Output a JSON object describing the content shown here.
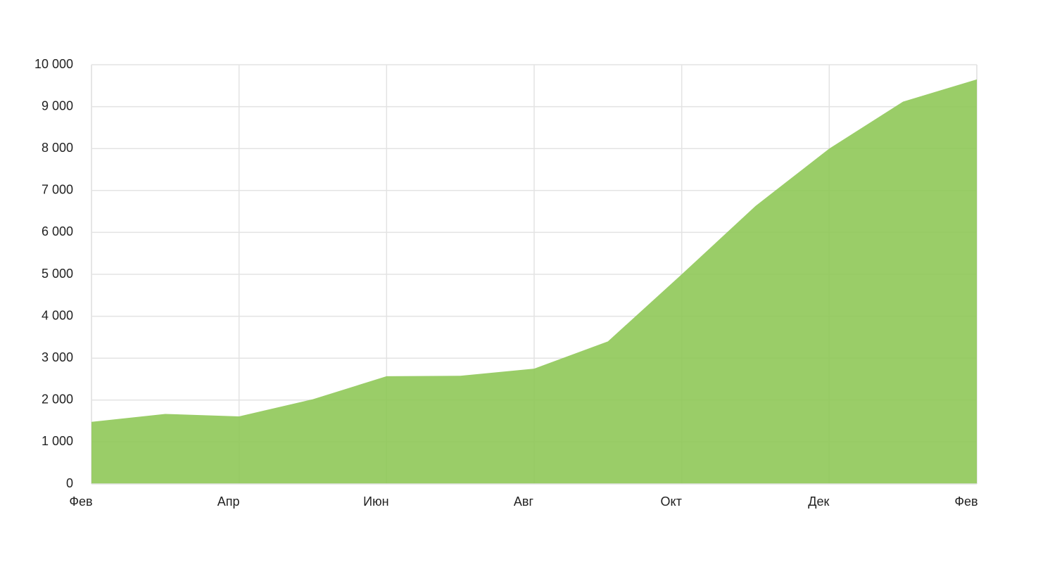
{
  "chart_data": {
    "type": "area",
    "categories": [
      "Фев",
      null,
      "Апр",
      null,
      "Июн",
      null,
      "Авг",
      null,
      "Окт",
      null,
      "Дек",
      null,
      "Фев"
    ],
    "values": [
      1480,
      1670,
      1610,
      2020,
      2570,
      2580,
      2750,
      3400,
      5000,
      6630,
      8000,
      9120,
      9650
    ],
    "color": "#8cc653",
    "ylim": [
      0,
      10000
    ],
    "yticks": [
      0,
      {
        "value": 1000,
        "label": "1 000"
      },
      {
        "value": 2000,
        "label": "2 000"
      },
      {
        "value": 3000,
        "label": "3 000"
      },
      {
        "value": 4000,
        "label": "4 000"
      },
      {
        "value": 5000,
        "label": "5 000"
      },
      {
        "value": 6000,
        "label": "6 000"
      },
      {
        "value": 7000,
        "label": "7 000"
      },
      {
        "value": 8000,
        "label": "8 000"
      },
      {
        "value": 9000,
        "label": "9 000"
      },
      {
        "value": 10000,
        "label": "10 000"
      }
    ],
    "grid": true
  }
}
